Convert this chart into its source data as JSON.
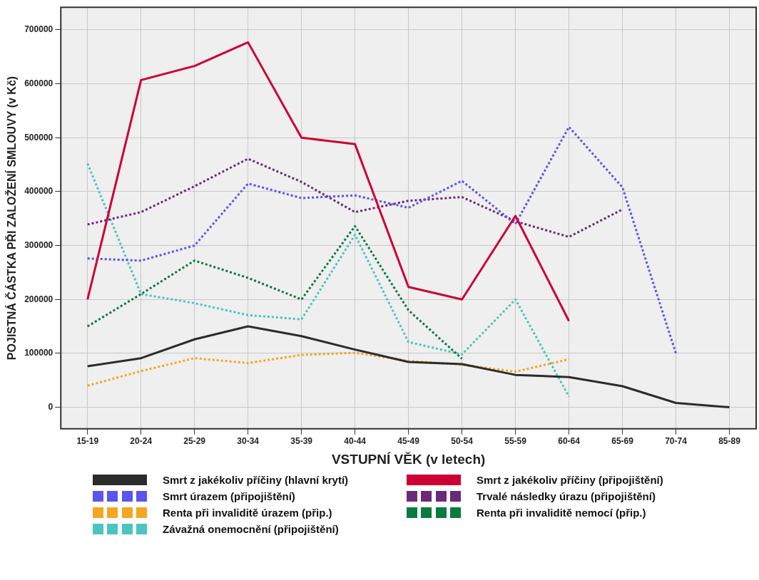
{
  "chart_data": {
    "type": "line",
    "xlabel": "VSTUPNÍ VĚK (v letech)",
    "ylabel": "POJISTNÁ ČÁSTKA PŘI ZALOŽENÍ SMLOUVY (v Kč)",
    "categories": [
      "15-19",
      "20-24",
      "25-29",
      "30-34",
      "35-39",
      "40-44",
      "45-49",
      "50-54",
      "55-59",
      "60-64",
      "65-69",
      "70-74",
      "85-89"
    ],
    "ylim": [
      -40000,
      742000
    ],
    "yticks": [
      0,
      100000,
      200000,
      300000,
      400000,
      500000,
      600000,
      700000
    ],
    "grid": true,
    "legend": "bottom",
    "marker": "none",
    "series": [
      {
        "name": "Smrt z jakékoliv příčiny (hlavní krytí)",
        "color": "#2b2b2b",
        "line_style": "solid",
        "values": [
          76000,
          91000,
          126000,
          150000,
          132000,
          107000,
          84000,
          80000,
          60000,
          56000,
          39000,
          8000,
          0
        ]
      },
      {
        "name": "Smrt z jakékoliv příčiny (připojištění)",
        "color": "#cc0033",
        "line_style": "solid",
        "values": [
          200000,
          607000,
          633000,
          677000,
          500000,
          488000,
          223000,
          200000,
          355000,
          160000,
          null,
          null,
          null
        ]
      },
      {
        "name": "Smrt úrazem (připojištění)",
        "color": "#5a55ee",
        "line_style": "dotted",
        "values": [
          276000,
          272000,
          300000,
          415000,
          388000,
          393000,
          370000,
          420000,
          340000,
          520000,
          408000,
          100000,
          null
        ]
      },
      {
        "name": "Trvalé následky úrazu (připojištění)",
        "color": "#6a2a7a",
        "line_style": "dotted",
        "values": [
          339000,
          362000,
          410000,
          461000,
          418000,
          362000,
          383000,
          390000,
          345000,
          316000,
          367000,
          null,
          null
        ]
      },
      {
        "name": "Renta při invaliditě úrazem (přip.)",
        "color": "#f5a623",
        "line_style": "dotted",
        "values": [
          40000,
          67000,
          91000,
          82000,
          97000,
          101000,
          86000,
          79000,
          66000,
          89000,
          null,
          null,
          null
        ]
      },
      {
        "name": "Renta při invaliditě nemocí (přip.)",
        "color": "#0a7a40",
        "line_style": "dotted",
        "values": [
          150000,
          210000,
          272000,
          240000,
          200000,
          336000,
          180000,
          90000,
          null,
          null,
          null,
          null,
          null
        ]
      },
      {
        "name": "Závažná onemocnění (připojištění)",
        "color": "#4cc4c0",
        "line_style": "dotted",
        "values": [
          452000,
          210000,
          193000,
          171000,
          163000,
          320000,
          121000,
          98000,
          200000,
          20000,
          null,
          null,
          null
        ]
      }
    ]
  }
}
